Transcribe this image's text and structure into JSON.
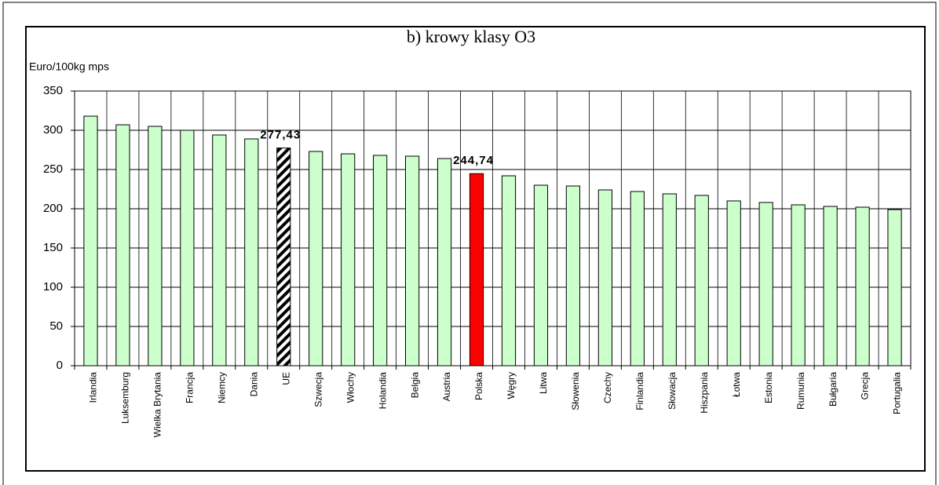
{
  "chart_data": {
    "type": "bar",
    "title": "b) krowy klasy O3",
    "y_label": "Euro/100kg mps",
    "categories": [
      "Irlandia",
      "Luksemburg",
      "Wielka Brytania",
      "Francja",
      "Niemcy",
      "Dania",
      "UE",
      "Szwecja",
      "Włochy",
      "Holandia",
      "Belgia",
      "Austria",
      "Polska",
      "Węgry",
      "Litwa",
      "Słowenia",
      "Czechy",
      "Finlandia",
      "Słowacja",
      "Hiszpania",
      "Łotwa",
      "Estonia",
      "Rumunia",
      "Bułgaria",
      "Grecja",
      "Portugalia"
    ],
    "values": [
      318,
      307,
      305,
      300,
      294,
      289,
      277.43,
      273,
      270,
      268,
      267,
      264,
      244.74,
      242,
      230,
      229,
      224,
      222,
      219,
      217,
      210,
      208,
      205,
      203,
      202,
      199
    ],
    "value_labels": [
      null,
      null,
      null,
      null,
      null,
      null,
      "277,43",
      null,
      null,
      null,
      null,
      null,
      "244,74",
      null,
      null,
      null,
      null,
      null,
      null,
      null,
      null,
      null,
      null,
      null,
      null,
      null
    ],
    "colors": [
      "#ccffcc",
      "#ccffcc",
      "#ccffcc",
      "#ccffcc",
      "#ccffcc",
      "#ccffcc",
      "#000000",
      "#ccffcc",
      "#ccffcc",
      "#ccffcc",
      "#ccffcc",
      "#ccffcc",
      "#ff0000",
      "#ccffcc",
      "#ccffcc",
      "#ccffcc",
      "#ccffcc",
      "#ccffcc",
      "#ccffcc",
      "#ccffcc",
      "#ccffcc",
      "#ccffcc",
      "#ccffcc",
      "#ccffcc",
      "#ccffcc",
      "#ccffcc"
    ],
    "hatched_categories": [
      "UE"
    ],
    "ylim": [
      0,
      350
    ],
    "yticks": [
      0,
      50,
      100,
      150,
      200,
      250,
      300,
      350
    ],
    "grid": "both"
  }
}
